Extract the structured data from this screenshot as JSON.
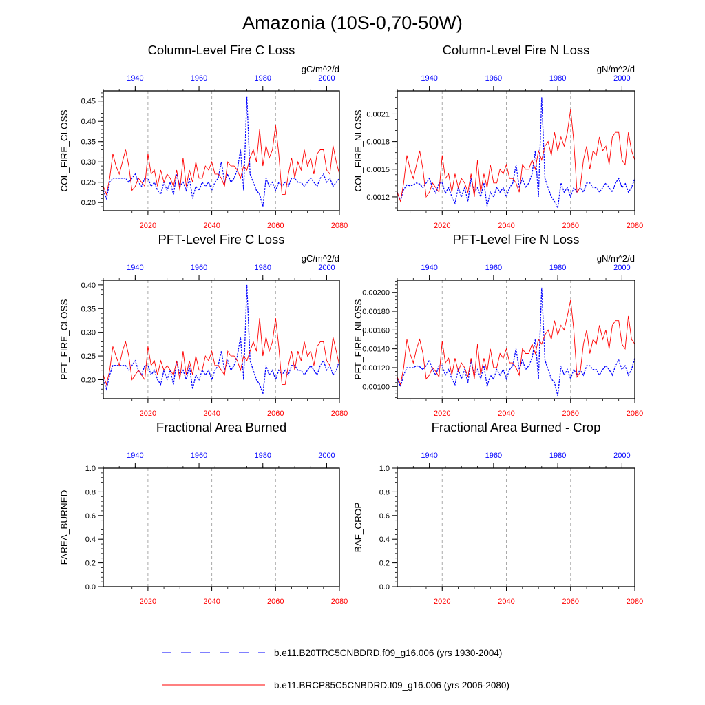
{
  "title": "Amazonia (10S-0,70-50W)",
  "colors": {
    "series_a": "#0000ff",
    "series_b": "#ff0000",
    "axis": "#000000",
    "grid": "#aaaaaa"
  },
  "legend": {
    "placement": "bottom",
    "entries": [
      {
        "label": "b.e11.B20TRC5CNBDRD.f09_g16.006 (yrs 1930-2004)",
        "color": "#0000ff",
        "style": "dashed"
      },
      {
        "label": "b.e11.BRCP85C5CNBDRD.f09_g16.006 (yrs 2006-2080)",
        "color": "#ff0000",
        "style": "solid"
      }
    ]
  },
  "chart_data": [
    {
      "type": "line",
      "title": "Column-Level Fire C Loss",
      "units": "gC/m^2/d",
      "ylabel": "COL_FIRE_CLOSS",
      "ylim": [
        0.18,
        0.475
      ],
      "yticks": [
        0.2,
        0.25,
        0.3,
        0.35,
        0.4,
        0.45
      ],
      "ytick_labels": [
        "0.20",
        "0.25",
        "0.30",
        "0.35",
        "0.40",
        "0.45"
      ],
      "grid": true,
      "x_bottom": {
        "range": [
          2006,
          2080
        ],
        "ticks": [
          2020,
          2040,
          2060,
          2080
        ]
      },
      "x_top": {
        "range": [
          1930,
          2004
        ],
        "ticks": [
          1940,
          1960,
          1980,
          2000
        ]
      },
      "series": [
        {
          "color": "blue",
          "style": "dashed",
          "axis": "top",
          "x_start": 1930,
          "values": [
            0.23,
            0.21,
            0.25,
            0.26,
            0.26,
            0.26,
            0.26,
            0.26,
            0.25,
            0.26,
            0.27,
            0.25,
            0.24,
            0.26,
            0.26,
            0.24,
            0.25,
            0.23,
            0.22,
            0.25,
            0.23,
            0.25,
            0.22,
            0.27,
            0.24,
            0.25,
            0.23,
            0.26,
            0.21,
            0.24,
            0.23,
            0.25,
            0.24,
            0.25,
            0.23,
            0.25,
            0.26,
            0.3,
            0.25,
            0.27,
            0.25,
            0.26,
            0.28,
            0.33,
            0.23,
            0.46,
            0.27,
            0.25,
            0.23,
            0.22,
            0.19,
            0.26,
            0.24,
            0.25,
            0.23,
            0.25,
            0.24,
            0.25,
            0.24,
            0.26,
            0.26,
            0.25,
            0.25,
            0.24,
            0.25,
            0.26,
            0.25,
            0.24,
            0.26,
            0.27,
            0.25,
            0.26,
            0.24,
            0.25,
            0.26
          ]
        },
        {
          "color": "red",
          "style": "solid",
          "axis": "bottom",
          "x_start": 2006,
          "values": [
            0.24,
            0.22,
            0.26,
            0.32,
            0.29,
            0.27,
            0.3,
            0.33,
            0.29,
            0.23,
            0.24,
            0.26,
            0.25,
            0.24,
            0.32,
            0.27,
            0.28,
            0.24,
            0.28,
            0.25,
            0.27,
            0.26,
            0.24,
            0.28,
            0.23,
            0.31,
            0.24,
            0.28,
            0.25,
            0.3,
            0.26,
            0.26,
            0.29,
            0.28,
            0.3,
            0.27,
            0.27,
            0.26,
            0.24,
            0.3,
            0.29,
            0.29,
            0.28,
            0.26,
            0.29,
            0.28,
            0.31,
            0.33,
            0.3,
            0.38,
            0.29,
            0.34,
            0.31,
            0.33,
            0.39,
            0.32,
            0.22,
            0.22,
            0.27,
            0.31,
            0.26,
            0.3,
            0.28,
            0.33,
            0.29,
            0.31,
            0.27,
            0.32,
            0.33,
            0.33,
            0.28,
            0.27,
            0.34,
            0.3,
            0.27
          ]
        }
      ]
    },
    {
      "type": "line",
      "title": "Column-Level Fire N Loss",
      "units": "gN/m^2/d",
      "ylabel": "COL_FIRE_NLOSS",
      "ylim": [
        0.00105,
        0.00235
      ],
      "yticks": [
        0.0012,
        0.0015,
        0.0018,
        0.0021
      ],
      "ytick_labels": [
        "0.0012",
        "0.0015",
        "0.0018",
        "0.0021"
      ],
      "grid": true,
      "x_bottom": {
        "range": [
          2006,
          2080
        ],
        "ticks": [
          2020,
          2040,
          2060,
          2080
        ]
      },
      "x_top": {
        "range": [
          1930,
          2004
        ],
        "ticks": [
          1940,
          1960,
          1980,
          2000
        ]
      },
      "series": [
        {
          "color": "blue",
          "style": "dashed",
          "axis": "top",
          "x_start": 1930,
          "values": [
            0.00125,
            0.00116,
            0.00128,
            0.00133,
            0.00132,
            0.00133,
            0.00135,
            0.00134,
            0.0013,
            0.00135,
            0.0014,
            0.0013,
            0.00124,
            0.00135,
            0.00135,
            0.00124,
            0.0013,
            0.0012,
            0.00113,
            0.0013,
            0.0012,
            0.0013,
            0.00115,
            0.0014,
            0.00125,
            0.0013,
            0.0012,
            0.00135,
            0.0011,
            0.00125,
            0.0012,
            0.0013,
            0.00125,
            0.0013,
            0.0012,
            0.0013,
            0.00135,
            0.00155,
            0.0013,
            0.0014,
            0.0013,
            0.00135,
            0.00145,
            0.0017,
            0.0012,
            0.00228,
            0.0014,
            0.0013,
            0.0012,
            0.00115,
            0.00108,
            0.00135,
            0.00125,
            0.0013,
            0.0012,
            0.0013,
            0.00125,
            0.0013,
            0.00125,
            0.00135,
            0.00135,
            0.0013,
            0.0013,
            0.00125,
            0.0013,
            0.00135,
            0.0013,
            0.00125,
            0.00135,
            0.0014,
            0.0013,
            0.00135,
            0.00125,
            0.0013,
            0.0014
          ]
        },
        {
          "color": "red",
          "style": "solid",
          "axis": "bottom",
          "x_start": 2006,
          "values": [
            0.00125,
            0.00115,
            0.00135,
            0.00165,
            0.0015,
            0.0014,
            0.00155,
            0.0017,
            0.0015,
            0.0012,
            0.00125,
            0.00135,
            0.0013,
            0.00125,
            0.00165,
            0.0014,
            0.00145,
            0.00125,
            0.00145,
            0.0013,
            0.0014,
            0.00135,
            0.00125,
            0.00145,
            0.0012,
            0.0016,
            0.00125,
            0.00145,
            0.0013,
            0.00155,
            0.00135,
            0.00135,
            0.0015,
            0.00145,
            0.00155,
            0.0014,
            0.0014,
            0.00135,
            0.00125,
            0.00155,
            0.0015,
            0.0015,
            0.0016,
            0.0015,
            0.0017,
            0.0016,
            0.00175,
            0.0018,
            0.00165,
            0.0019,
            0.0017,
            0.00185,
            0.00175,
            0.0019,
            0.00215,
            0.0018,
            0.00125,
            0.0013,
            0.0016,
            0.00175,
            0.0015,
            0.0017,
            0.00165,
            0.00185,
            0.0017,
            0.00175,
            0.00155,
            0.00185,
            0.0019,
            0.0019,
            0.0016,
            0.00155,
            0.0019,
            0.0017,
            0.0016
          ]
        }
      ]
    },
    {
      "type": "line",
      "title": "PFT-Level Fire C Loss",
      "units": "gC/m^2/d",
      "ylabel": "PFT_FIRE_CLOSS",
      "ylim": [
        0.16,
        0.41
      ],
      "yticks": [
        0.2,
        0.25,
        0.3,
        0.35,
        0.4
      ],
      "ytick_labels": [
        "0.20",
        "0.25",
        "0.30",
        "0.35",
        "0.40"
      ],
      "grid": true,
      "x_bottom": {
        "range": [
          2006,
          2080
        ],
        "ticks": [
          2020,
          2040,
          2060,
          2080
        ]
      },
      "x_top": {
        "range": [
          1930,
          2004
        ],
        "ticks": [
          1940,
          1960,
          1980,
          2000
        ]
      },
      "series": [
        {
          "color": "blue",
          "style": "dashed",
          "axis": "top",
          "x_start": 1930,
          "values": [
            0.2,
            0.18,
            0.21,
            0.23,
            0.23,
            0.23,
            0.23,
            0.23,
            0.22,
            0.23,
            0.24,
            0.22,
            0.21,
            0.23,
            0.23,
            0.21,
            0.22,
            0.2,
            0.19,
            0.22,
            0.2,
            0.22,
            0.19,
            0.24,
            0.21,
            0.22,
            0.2,
            0.23,
            0.18,
            0.21,
            0.2,
            0.22,
            0.21,
            0.22,
            0.2,
            0.22,
            0.23,
            0.26,
            0.22,
            0.24,
            0.22,
            0.23,
            0.25,
            0.29,
            0.2,
            0.4,
            0.24,
            0.22,
            0.2,
            0.19,
            0.17,
            0.23,
            0.21,
            0.22,
            0.2,
            0.22,
            0.21,
            0.22,
            0.21,
            0.23,
            0.23,
            0.22,
            0.22,
            0.21,
            0.22,
            0.23,
            0.22,
            0.21,
            0.23,
            0.24,
            0.22,
            0.23,
            0.21,
            0.22,
            0.24
          ]
        },
        {
          "color": "red",
          "style": "solid",
          "axis": "bottom",
          "x_start": 2006,
          "values": [
            0.21,
            0.19,
            0.22,
            0.27,
            0.25,
            0.23,
            0.26,
            0.28,
            0.25,
            0.2,
            0.21,
            0.22,
            0.21,
            0.2,
            0.27,
            0.23,
            0.24,
            0.21,
            0.24,
            0.22,
            0.23,
            0.22,
            0.21,
            0.24,
            0.2,
            0.26,
            0.21,
            0.24,
            0.21,
            0.25,
            0.22,
            0.22,
            0.25,
            0.24,
            0.26,
            0.23,
            0.23,
            0.22,
            0.21,
            0.26,
            0.25,
            0.25,
            0.24,
            0.22,
            0.25,
            0.24,
            0.26,
            0.28,
            0.26,
            0.33,
            0.25,
            0.29,
            0.26,
            0.28,
            0.33,
            0.27,
            0.19,
            0.19,
            0.23,
            0.26,
            0.22,
            0.26,
            0.24,
            0.28,
            0.25,
            0.26,
            0.23,
            0.27,
            0.28,
            0.28,
            0.24,
            0.23,
            0.29,
            0.26,
            0.23
          ]
        }
      ]
    },
    {
      "type": "line",
      "title": "PFT-Level Fire N Loss",
      "units": "gN/m^2/d",
      "ylabel": "PFT_FIRE_NLOSS",
      "ylim": [
        0.00087,
        0.00213
      ],
      "yticks": [
        0.001,
        0.0012,
        0.0014,
        0.0016,
        0.0018,
        0.002
      ],
      "ytick_labels": [
        "0.00100",
        "0.00120",
        "0.00140",
        "0.00160",
        "0.00180",
        "0.00200"
      ],
      "grid": true,
      "x_bottom": {
        "range": [
          2006,
          2080
        ],
        "ticks": [
          2020,
          2040,
          2060,
          2080
        ]
      },
      "x_top": {
        "range": [
          1930,
          2004
        ],
        "ticks": [
          1940,
          1960,
          1980,
          2000
        ]
      },
      "series": [
        {
          "color": "blue",
          "style": "dashed",
          "axis": "top",
          "x_start": 1930,
          "values": [
            0.00108,
            0.001,
            0.00112,
            0.0012,
            0.0012,
            0.0012,
            0.00122,
            0.00121,
            0.00118,
            0.00122,
            0.00128,
            0.00118,
            0.00112,
            0.00122,
            0.00122,
            0.00112,
            0.00118,
            0.00108,
            0.00102,
            0.00118,
            0.00108,
            0.00118,
            0.00104,
            0.00128,
            0.00112,
            0.00118,
            0.00108,
            0.00122,
            0.001,
            0.00112,
            0.00108,
            0.00118,
            0.00112,
            0.00118,
            0.00108,
            0.00118,
            0.00122,
            0.0014,
            0.00118,
            0.00128,
            0.00118,
            0.00122,
            0.0013,
            0.0015,
            0.00108,
            0.00205,
            0.00128,
            0.00118,
            0.00108,
            0.00104,
            0.0009,
            0.00122,
            0.00112,
            0.00118,
            0.00108,
            0.00118,
            0.00112,
            0.00118,
            0.00112,
            0.00122,
            0.00122,
            0.00118,
            0.00118,
            0.00112,
            0.00118,
            0.00122,
            0.00118,
            0.00112,
            0.00122,
            0.00128,
            0.00118,
            0.00122,
            0.00112,
            0.00118,
            0.0013
          ]
        },
        {
          "color": "red",
          "style": "solid",
          "axis": "bottom",
          "x_start": 2006,
          "values": [
            0.0011,
            0.00102,
            0.0012,
            0.0015,
            0.00135,
            0.00125,
            0.0014,
            0.0015,
            0.00135,
            0.00108,
            0.00112,
            0.0012,
            0.00116,
            0.0011,
            0.00148,
            0.00125,
            0.0013,
            0.00112,
            0.0013,
            0.00116,
            0.00125,
            0.0012,
            0.0011,
            0.0013,
            0.00108,
            0.00145,
            0.00112,
            0.0013,
            0.00116,
            0.0014,
            0.0012,
            0.0012,
            0.00135,
            0.0013,
            0.0014,
            0.00125,
            0.00125,
            0.0012,
            0.00112,
            0.0014,
            0.00135,
            0.00135,
            0.00145,
            0.00135,
            0.0015,
            0.00145,
            0.00155,
            0.0016,
            0.0015,
            0.0017,
            0.00155,
            0.00165,
            0.0016,
            0.00175,
            0.00192,
            0.0016,
            0.0011,
            0.00115,
            0.00145,
            0.0016,
            0.00135,
            0.0015,
            0.00145,
            0.00165,
            0.0015,
            0.0016,
            0.0014,
            0.00165,
            0.0017,
            0.0017,
            0.00145,
            0.0014,
            0.00175,
            0.0015,
            0.00145
          ]
        }
      ]
    },
    {
      "type": "line",
      "title": "Fractional Area Burned",
      "units": "",
      "ylabel": "FAREA_BURNED",
      "ylim": [
        0,
        1
      ],
      "yticks": [
        0,
        0.2,
        0.4,
        0.6,
        0.8,
        1
      ],
      "ytick_labels": [
        "0.0",
        "0.2",
        "0.4",
        "0.6",
        "0.8",
        "1.0"
      ],
      "grid": true,
      "x_bottom": {
        "range": [
          2006,
          2080
        ],
        "ticks": [
          2020,
          2040,
          2060,
          2080
        ]
      },
      "x_top": {
        "range": [
          1930,
          2004
        ],
        "ticks": [
          1940,
          1960,
          1980,
          2000
        ]
      },
      "series": []
    },
    {
      "type": "line",
      "title": "Fractional Area Burned - Crop",
      "units": "",
      "ylabel": "BAF_CROP",
      "ylim": [
        0,
        1
      ],
      "yticks": [
        0,
        0.2,
        0.4,
        0.6,
        0.8,
        1
      ],
      "ytick_labels": [
        "0.0",
        "0.2",
        "0.4",
        "0.6",
        "0.8",
        "1.0"
      ],
      "grid": true,
      "x_bottom": {
        "range": [
          2006,
          2080
        ],
        "ticks": [
          2020,
          2040,
          2060,
          2080
        ]
      },
      "x_top": {
        "range": [
          1930,
          2004
        ],
        "ticks": [
          1940,
          1960,
          1980,
          2000
        ]
      },
      "series": []
    }
  ]
}
